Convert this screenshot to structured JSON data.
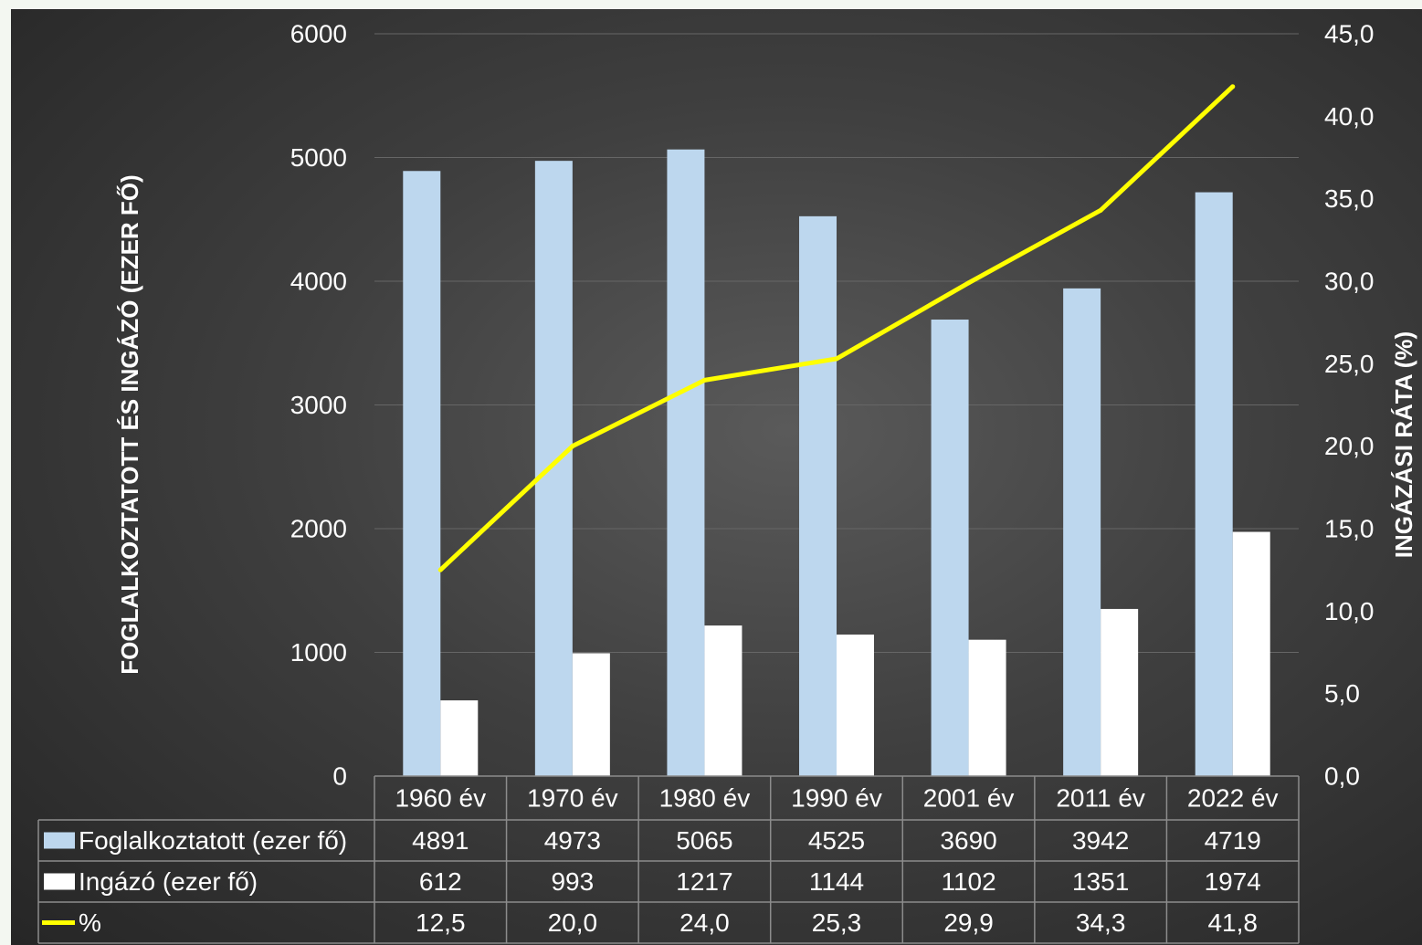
{
  "chart_data": {
    "type": "bar",
    "categories": [
      "1960 év",
      "1970 év",
      "1980 év",
      "1990 év",
      "2001 év",
      "2011 év",
      "2022 év"
    ],
    "series": [
      {
        "name": "Foglalkoztatott (ezer fő)",
        "kind": "bar",
        "axis": "left",
        "values": [
          4891,
          4973,
          5065,
          4525,
          3690,
          3942,
          4719
        ],
        "labels": [
          "4891",
          "4973",
          "5065",
          "4525",
          "3690",
          "3942",
          "4719"
        ]
      },
      {
        "name": "Ingázó (ezer fő)",
        "kind": "bar",
        "axis": "left",
        "values": [
          612,
          993,
          1217,
          1144,
          1102,
          1351,
          1974
        ],
        "labels": [
          "612",
          "993",
          "1217",
          "1144",
          "1102",
          "1351",
          "1974"
        ]
      },
      {
        "name": "%",
        "kind": "line",
        "axis": "right",
        "values": [
          12.5,
          20.0,
          24.0,
          25.3,
          29.9,
          34.3,
          41.8
        ],
        "labels": [
          "12,5",
          "20,0",
          "24,0",
          "25,3",
          "29,9",
          "34,3",
          "41,8"
        ]
      }
    ],
    "ylabel": "FOGLALKOZTATOTT ÉS INGÁZÓ (EZER FŐ)",
    "y2label": "INGÁZÁSI RÁTA (%)",
    "ylim": [
      0,
      6000
    ],
    "y2lim": [
      0,
      45
    ],
    "yticks": [
      "0",
      "1000",
      "2000",
      "3000",
      "4000",
      "5000",
      "6000"
    ],
    "y2ticks": [
      "0,0",
      "5,0",
      "10,0",
      "15,0",
      "20,0",
      "25,0",
      "30,0",
      "35,0",
      "40,0",
      "45,0"
    ],
    "grid": true,
    "legend": "data table",
    "colors": {
      "bar1": "#bdd7ee",
      "bar2": "#ffffff",
      "line": "#ffff00",
      "grid": "#666666",
      "table": "#8c8c8c"
    }
  }
}
